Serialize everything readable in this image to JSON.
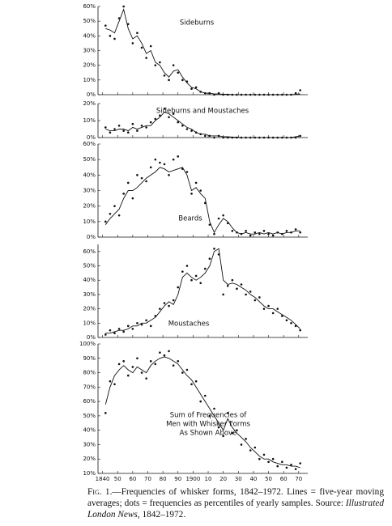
{
  "chart_data": [
    {
      "type": "line",
      "annotation": [
        "Sideburns"
      ],
      "x": [
        1842,
        1845,
        1848,
        1851,
        1854,
        1857,
        1860,
        1863,
        1866,
        1869,
        1872,
        1875,
        1878,
        1881,
        1884,
        1887,
        1890,
        1893,
        1896,
        1899,
        1902,
        1905,
        1908,
        1911,
        1914,
        1917,
        1920,
        1923,
        1926,
        1929,
        1932,
        1935,
        1938,
        1941,
        1944,
        1947,
        1950,
        1953,
        1956,
        1959,
        1962,
        1965,
        1968,
        1971
      ],
      "xlim": [
        1837,
        1976
      ],
      "ylim": [
        0,
        60
      ],
      "yticks": [
        {
          "value": 0,
          "label": "0%"
        },
        {
          "value": 10,
          "label": "10%"
        },
        {
          "value": 20,
          "label": "20%"
        },
        {
          "value": 30,
          "label": "30%"
        },
        {
          "value": 40,
          "label": "40%"
        },
        {
          "value": 50,
          "label": "50%"
        },
        {
          "value": 60,
          "label": "60%"
        }
      ],
      "series": [
        {
          "style": "line",
          "color": "#111111",
          "values": [
            45,
            44,
            42,
            50,
            58,
            45,
            38,
            40,
            35,
            28,
            30,
            22,
            20,
            15,
            12,
            16,
            17,
            12,
            8,
            5,
            4,
            2,
            1,
            1,
            0.5,
            0.5,
            0.3,
            0.3,
            0,
            0,
            0,
            0,
            0,
            0,
            0,
            0,
            0,
            0,
            0,
            0,
            0,
            0,
            0.3,
            0.5
          ]
        },
        {
          "style": "points",
          "color": "#111111",
          "values": [
            47,
            40,
            38,
            52,
            60,
            48,
            35,
            42,
            32,
            25,
            33,
            20,
            22,
            13,
            10,
            20,
            15,
            10,
            9,
            4,
            5,
            2,
            1,
            1,
            0,
            1,
            0,
            0,
            0,
            0,
            0,
            0,
            0,
            0,
            0,
            0,
            0,
            0,
            0,
            0,
            0,
            0,
            1,
            3
          ]
        }
      ]
    },
    {
      "type": "line",
      "annotation": [
        "Sideburns and Moustaches"
      ],
      "x": [
        1842,
        1845,
        1848,
        1851,
        1854,
        1857,
        1860,
        1863,
        1866,
        1869,
        1872,
        1875,
        1878,
        1881,
        1884,
        1887,
        1890,
        1893,
        1896,
        1899,
        1902,
        1905,
        1908,
        1911,
        1914,
        1917,
        1920,
        1923,
        1926,
        1929,
        1932,
        1935,
        1938,
        1941,
        1944,
        1947,
        1950,
        1953,
        1956,
        1959,
        1962,
        1965,
        1968,
        1971
      ],
      "xlim": [
        1837,
        1976
      ],
      "ylim": [
        0,
        20
      ],
      "yticks": [
        {
          "value": 0,
          "label": "0%"
        },
        {
          "value": 10,
          "label": "10%"
        },
        {
          "value": 20,
          "label": "20%"
        }
      ],
      "series": [
        {
          "style": "line",
          "color": "#111111",
          "values": [
            5,
            4,
            4,
            5,
            5,
            4,
            6,
            5,
            6,
            7,
            7,
            10,
            12,
            15,
            14,
            12,
            10,
            8,
            6,
            5,
            3,
            2,
            2,
            1,
            1,
            1,
            0.5,
            0.5,
            0.3,
            0.3,
            0,
            0,
            0,
            0,
            0,
            0,
            0,
            0,
            0,
            0,
            0,
            0,
            0.5,
            1
          ]
        },
        {
          "style": "points",
          "color": "#111111",
          "values": [
            6,
            3,
            5,
            7,
            4,
            3,
            8,
            4,
            7,
            6,
            9,
            11,
            13,
            17,
            12,
            14,
            9,
            7,
            5,
            4,
            3,
            2,
            1,
            1,
            0,
            1,
            0,
            0,
            0,
            0,
            0,
            0,
            0,
            0,
            0,
            0,
            0,
            0,
            0,
            0,
            0,
            0,
            0,
            1
          ]
        }
      ]
    },
    {
      "type": "line",
      "annotation": [
        "Beards"
      ],
      "x": [
        1842,
        1845,
        1848,
        1851,
        1854,
        1857,
        1860,
        1863,
        1866,
        1869,
        1872,
        1875,
        1878,
        1881,
        1884,
        1887,
        1890,
        1893,
        1896,
        1899,
        1902,
        1905,
        1908,
        1911,
        1914,
        1917,
        1920,
        1923,
        1926,
        1929,
        1932,
        1935,
        1938,
        1941,
        1944,
        1947,
        1950,
        1953,
        1956,
        1959,
        1962,
        1965,
        1968,
        1971
      ],
      "xlim": [
        1837,
        1976
      ],
      "ylim": [
        0,
        60
      ],
      "yticks": [
        {
          "value": 0,
          "label": "0%"
        },
        {
          "value": 10,
          "label": "10%"
        },
        {
          "value": 20,
          "label": "20%"
        },
        {
          "value": 30,
          "label": "30%"
        },
        {
          "value": 40,
          "label": "40%"
        },
        {
          "value": 50,
          "label": "50%"
        },
        {
          "value": 60,
          "label": "60%"
        }
      ],
      "series": [
        {
          "style": "line",
          "color": "#111111",
          "values": [
            8,
            12,
            15,
            18,
            25,
            30,
            30,
            32,
            35,
            38,
            40,
            42,
            45,
            44,
            42,
            43,
            44,
            45,
            40,
            30,
            32,
            28,
            25,
            10,
            3,
            8,
            12,
            10,
            6,
            3,
            2,
            3,
            2,
            2,
            3,
            2,
            3,
            2,
            3,
            2,
            3,
            3,
            4,
            4
          ]
        },
        {
          "style": "points",
          "color": "#111111",
          "values": [
            10,
            15,
            20,
            14,
            28,
            35,
            25,
            40,
            38,
            36,
            45,
            50,
            48,
            47,
            40,
            50,
            52,
            44,
            42,
            28,
            35,
            30,
            22,
            8,
            2,
            12,
            14,
            9,
            4,
            3,
            2,
            4,
            1,
            3,
            2,
            4,
            2,
            1,
            3,
            2,
            4,
            3,
            5,
            3
          ]
        }
      ]
    },
    {
      "type": "line",
      "annotation": [
        "Moustaches"
      ],
      "x": [
        1842,
        1845,
        1848,
        1851,
        1854,
        1857,
        1860,
        1863,
        1866,
        1869,
        1872,
        1875,
        1878,
        1881,
        1884,
        1887,
        1890,
        1893,
        1896,
        1899,
        1902,
        1905,
        1908,
        1911,
        1914,
        1917,
        1920,
        1923,
        1926,
        1929,
        1932,
        1935,
        1938,
        1941,
        1944,
        1947,
        1950,
        1953,
        1956,
        1959,
        1962,
        1965,
        1968,
        1971
      ],
      "xlim": [
        1837,
        1976
      ],
      "ylim": [
        0,
        65
      ],
      "yticks": [
        {
          "value": 0,
          "label": "0%"
        },
        {
          "value": 10,
          "label": "10%"
        },
        {
          "value": 20,
          "label": "20%"
        },
        {
          "value": 30,
          "label": "30%"
        },
        {
          "value": 40,
          "label": "40%"
        },
        {
          "value": 50,
          "label": "50%"
        },
        {
          "value": 60,
          "label": "60%"
        }
      ],
      "series": [
        {
          "style": "line",
          "color": "#111111",
          "values": [
            3,
            3,
            4,
            5,
            5,
            6,
            8,
            8,
            10,
            10,
            12,
            14,
            18,
            22,
            25,
            23,
            30,
            42,
            45,
            42,
            40,
            42,
            45,
            50,
            60,
            62,
            40,
            37,
            38,
            37,
            35,
            33,
            30,
            28,
            25,
            22,
            20,
            20,
            18,
            16,
            14,
            12,
            9,
            6
          ]
        },
        {
          "style": "points",
          "color": "#111111",
          "values": [
            2,
            5,
            3,
            6,
            4,
            8,
            6,
            10,
            9,
            12,
            8,
            15,
            20,
            24,
            22,
            26,
            35,
            46,
            50,
            40,
            43,
            38,
            48,
            55,
            62,
            58,
            30,
            36,
            40,
            34,
            37,
            30,
            32,
            26,
            28,
            20,
            22,
            17,
            20,
            15,
            12,
            10,
            8,
            5
          ]
        }
      ]
    },
    {
      "type": "line",
      "annotation": [
        "Sum of Frequencies of",
        "Men with Whisker Forms",
        "As Shown Above"
      ],
      "x": [
        1842,
        1845,
        1848,
        1851,
        1854,
        1857,
        1860,
        1863,
        1866,
        1869,
        1872,
        1875,
        1878,
        1881,
        1884,
        1887,
        1890,
        1893,
        1896,
        1899,
        1902,
        1905,
        1908,
        1911,
        1914,
        1917,
        1920,
        1923,
        1926,
        1929,
        1932,
        1935,
        1938,
        1941,
        1944,
        1947,
        1950,
        1953,
        1956,
        1959,
        1962,
        1965,
        1968,
        1971
      ],
      "xlim": [
        1837,
        1976
      ],
      "ylim": [
        10,
        100
      ],
      "xticks": [
        {
          "value": 1840,
          "label": "1840"
        },
        {
          "value": 1850,
          "label": "50"
        },
        {
          "value": 1860,
          "label": "60"
        },
        {
          "value": 1870,
          "label": "70"
        },
        {
          "value": 1880,
          "label": "80"
        },
        {
          "value": 1890,
          "label": "90"
        },
        {
          "value": 1900,
          "label": "1900"
        },
        {
          "value": 1910,
          "label": "10"
        },
        {
          "value": 1920,
          "label": "20"
        },
        {
          "value": 1930,
          "label": "30"
        },
        {
          "value": 1940,
          "label": "40"
        },
        {
          "value": 1950,
          "label": "50"
        },
        {
          "value": 1960,
          "label": "60"
        },
        {
          "value": 1970,
          "label": "70"
        }
      ],
      "yticks": [
        {
          "value": 10,
          "label": "10%"
        },
        {
          "value": 20,
          "label": "20%"
        },
        {
          "value": 30,
          "label": "30%"
        },
        {
          "value": 40,
          "label": "40%"
        },
        {
          "value": 50,
          "label": "50%"
        },
        {
          "value": 60,
          "label": "60%"
        },
        {
          "value": 70,
          "label": "70%"
        },
        {
          "value": 80,
          "label": "80%"
        },
        {
          "value": 90,
          "label": "90%"
        },
        {
          "value": 100,
          "label": "100%"
        }
      ],
      "series": [
        {
          "style": "line",
          "color": "#111111",
          "values": [
            58,
            70,
            78,
            82,
            85,
            82,
            80,
            84,
            82,
            80,
            85,
            88,
            90,
            91,
            90,
            88,
            86,
            82,
            78,
            75,
            70,
            65,
            60,
            55,
            50,
            45,
            40,
            48,
            42,
            38,
            35,
            32,
            28,
            25,
            22,
            20,
            20,
            18,
            17,
            16,
            16,
            15,
            15,
            14
          ]
        },
        {
          "style": "points",
          "color": "#111111",
          "values": [
            52,
            74,
            72,
            86,
            88,
            78,
            84,
            90,
            80,
            76,
            88,
            86,
            94,
            92,
            95,
            85,
            88,
            80,
            82,
            72,
            74,
            60,
            64,
            50,
            55,
            42,
            36,
            52,
            38,
            40,
            30,
            34,
            26,
            28,
            20,
            23,
            18,
            20,
            15,
            18,
            14,
            16,
            13,
            17
          ]
        }
      ]
    }
  ],
  "caption": {
    "label": "Fig. 1.",
    "text": "—Frequencies of whisker forms, 1842–1972. Lines = five-year moving averages; dots = frequencies as percentiles of yearly samples. Source: ",
    "source": "Illustrated London News",
    "end": ", 1842–1972."
  }
}
